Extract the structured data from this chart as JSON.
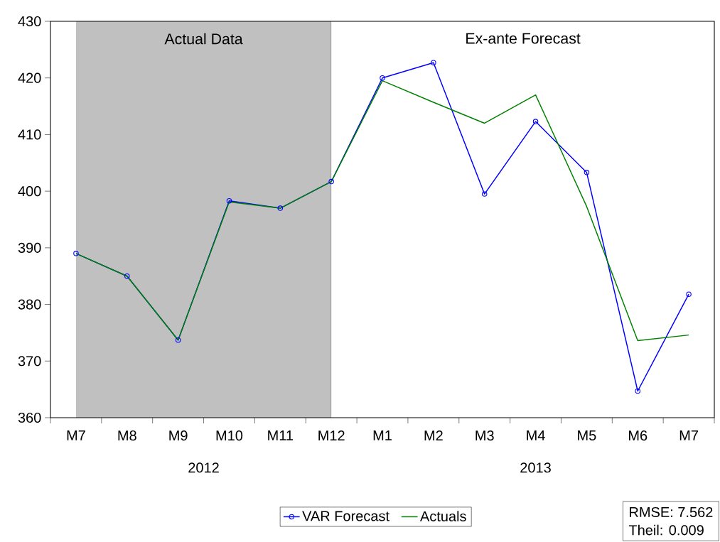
{
  "chart_data": {
    "type": "line",
    "x": [
      "2012-07",
      "2012-08",
      "2012-09",
      "2012-10",
      "2012-11",
      "2012-12",
      "2013-01",
      "2013-02",
      "2013-03",
      "2013-04",
      "2013-05",
      "2013-06",
      "2013-07"
    ],
    "xlim": [
      "2012-06-16",
      "2013-07-16"
    ],
    "xticks": [
      {
        "value": "2012-07",
        "label": "M7"
      },
      {
        "value": "2012-08",
        "label": "M8"
      },
      {
        "value": "2012-09",
        "label": "M9"
      },
      {
        "value": "2012-10",
        "label": "M10"
      },
      {
        "value": "2012-11",
        "label": "M11"
      },
      {
        "value": "2012-12",
        "label": "M12"
      },
      {
        "value": "2013-01",
        "label": "M1"
      },
      {
        "value": "2013-02",
        "label": "M2"
      },
      {
        "value": "2013-03",
        "label": "M3"
      },
      {
        "value": "2013-04",
        "label": "M4"
      },
      {
        "value": "2013-05",
        "label": "M5"
      },
      {
        "value": "2013-06",
        "label": "M6"
      },
      {
        "value": "2013-07",
        "label": "M7"
      }
    ],
    "ylim": [
      360,
      430
    ],
    "yticks": [
      360,
      370,
      380,
      390,
      400,
      410,
      420,
      430
    ],
    "series": [
      {
        "name": "VAR Forecast",
        "color": "#0000ff",
        "marker": "circle",
        "values": [
          389,
          385,
          373.7,
          398.3,
          397,
          401.7,
          420,
          422.7,
          399.5,
          412.3,
          403.3,
          364.7,
          381.8
        ]
      },
      {
        "name": "Actuals",
        "color": "#008000",
        "marker": "none",
        "values": [
          389,
          385,
          373.7,
          398.1,
          397,
          401.7,
          419.5,
          415.7,
          412,
          417,
          397.3,
          373.6,
          374.6
        ]
      }
    ],
    "bands": [
      {
        "axis": "x",
        "from": "2012-07",
        "to": "2012-12",
        "label": "Actual Data",
        "color": "#c0c0c0"
      },
      {
        "axis": "x",
        "from": "2012-12",
        "to": "2013-07",
        "label": "Ex-ante Forecast",
        "color": "#ffffff"
      }
    ],
    "legend": "bottom",
    "annotations": [
      "2012",
      "2013",
      "RMSE: 7.562",
      "Theil: 0.009"
    ]
  }
}
